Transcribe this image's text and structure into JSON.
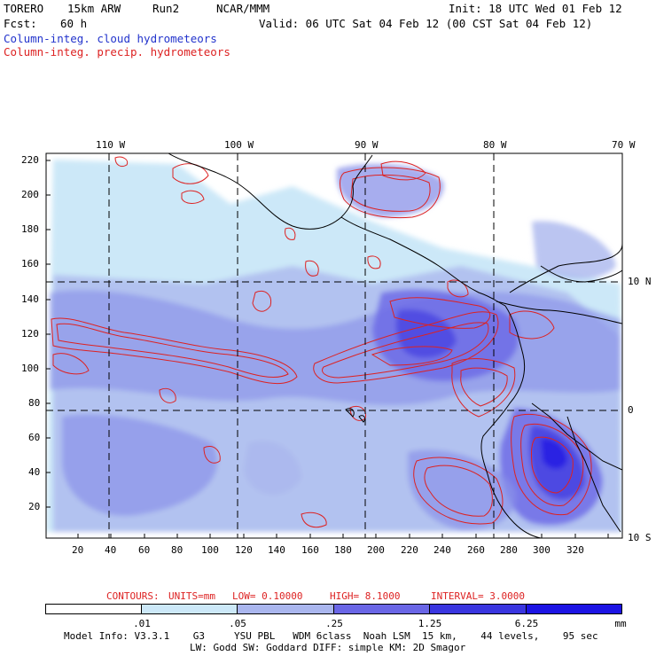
{
  "header": {
    "model": "TORERO",
    "resolution": "15km ARW",
    "run": "Run2",
    "org": "NCAR/MMM",
    "init": "Init: 18 UTC Wed 01 Feb 12",
    "fcst_label": "Fcst:",
    "fcst_value": "60 h",
    "valid": "Valid: 06 UTC Sat 04 Feb 12 (00 CST Sat 04 Feb 12)",
    "field1": "Column-integ. cloud hydrometeors",
    "field2": "Column-integ. precip. hydrometeors"
  },
  "colors": {
    "cloud_field": "#2233cc",
    "precip_contour": "#dd2222",
    "shade_1": "#cce8f8",
    "shade_2": "#aab6ee",
    "shade_3": "#8a92e8",
    "shade_4": "#6a66e6",
    "shade_5": "#3a36e0",
    "shade_6": "#1c14e4"
  },
  "map": {
    "lon_labels": [
      "110 W",
      "100 W",
      "90 W",
      "80 W",
      "70 W"
    ],
    "lat_labels": [
      "10 N",
      "0",
      "10 S"
    ],
    "y_ticks": [
      "220",
      "200",
      "180",
      "160",
      "140",
      "120",
      "100",
      "80",
      "60",
      "40",
      "20"
    ],
    "x_ticks": [
      "20",
      "40",
      "60",
      "80",
      "100",
      "120",
      "140",
      "160",
      "180",
      "200",
      "220",
      "240",
      "260",
      "280",
      "300",
      "320"
    ]
  },
  "contours_info": {
    "label": "CONTOURS:",
    "units": "UNITS=mm",
    "low": "LOW= 0.10000",
    "high": "HIGH= 8.1000",
    "interval": "INTERVAL= 3.0000"
  },
  "colorbar": {
    "labels": [
      ".01",
      ".05",
      ".25",
      "1.25",
      "6.25"
    ],
    "unit": "mm"
  },
  "footer": {
    "line1": "Model Info: V3.3.1    G3     YSU PBL   WDM 6class  Noah LSM  15 km,    44 levels,    95 sec",
    "line2": "LW: Godd SW: Goddard DIFF: simple KM: 2D Smagor"
  }
}
